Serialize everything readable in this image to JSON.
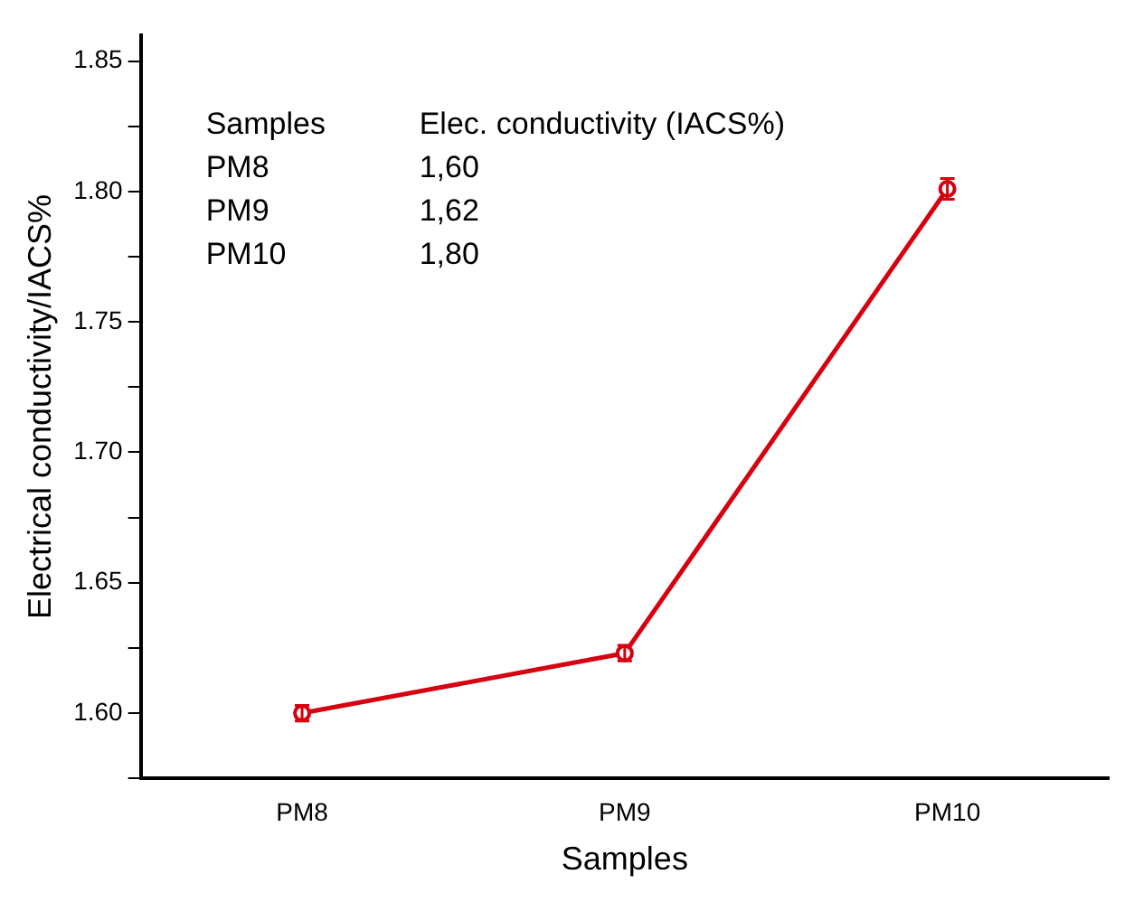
{
  "chart_data": {
    "type": "line",
    "xlabel": "Samples",
    "ylabel": "Electrical conductivity/IACS%",
    "categories": [
      "PM8",
      "PM9",
      "PM10"
    ],
    "series": [
      {
        "color": "#d7000f",
        "values": [
          1.6,
          1.623,
          1.801
        ],
        "errors": [
          0.003,
          0.003,
          0.004
        ]
      }
    ],
    "ylim": [
      1.575,
      1.86
    ],
    "yticks": [
      {
        "value": 1.575,
        "label": null
      },
      {
        "value": 1.6,
        "label": "1.60"
      },
      {
        "value": 1.625,
        "label": null
      },
      {
        "value": 1.65,
        "label": "1.65"
      },
      {
        "value": 1.675,
        "label": null
      },
      {
        "value": 1.7,
        "label": "1.70"
      },
      {
        "value": 1.725,
        "label": null
      },
      {
        "value": 1.75,
        "label": "1.75"
      },
      {
        "value": 1.775,
        "label": null
      },
      {
        "value": 1.8,
        "label": "1.80"
      },
      {
        "value": 1.825,
        "label": null
      },
      {
        "value": 1.85,
        "label": "1.85"
      }
    ],
    "grid": false,
    "legend": false,
    "marker": "circle",
    "line_style": "solid",
    "annotations": [
      "Samples",
      "Elec. conductivity (IACS%)",
      "PM8",
      "1,60",
      "PM9",
      "1,62",
      "PM10",
      "1,80"
    ]
  }
}
